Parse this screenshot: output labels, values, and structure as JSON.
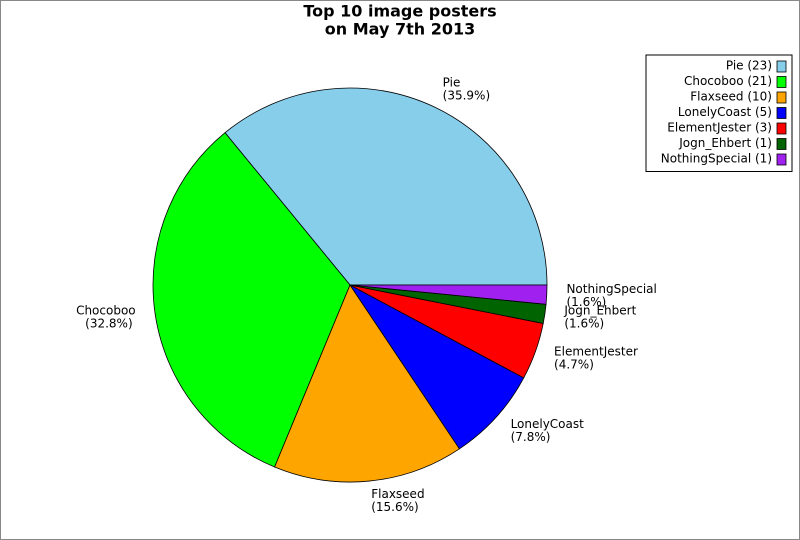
{
  "chart_data": {
    "type": "pie",
    "title": [
      "Top 10 image posters",
      "on May 7th 2013"
    ],
    "categories": [
      "Pie",
      "Chocoboo",
      "Flaxseed",
      "LonelyCoast",
      "ElementJester",
      "Jogn_Ehbert",
      "NothingSpecial"
    ],
    "values": [
      23,
      21,
      10,
      5,
      3,
      1,
      1
    ],
    "percent_labels": [
      "(35.9%)",
      "(32.8%)",
      "(15.6%)",
      "(7.8%)",
      "(4.7%)",
      "(1.6%)",
      "(1.6%)"
    ],
    "legend_labels": [
      "Pie (23)",
      "Chocoboo (21)",
      "Flaxseed (10)",
      "LonelyCoast (5)",
      "ElementJester (3)",
      "Jogn_Ehbert (1)",
      "NothingSpecial (1)"
    ],
    "colors": [
      "#87ceeb",
      "#00ff00",
      "#ffa500",
      "#0000ff",
      "#ff0000",
      "#006400",
      "#a020f0"
    ],
    "legend": "top-right"
  }
}
